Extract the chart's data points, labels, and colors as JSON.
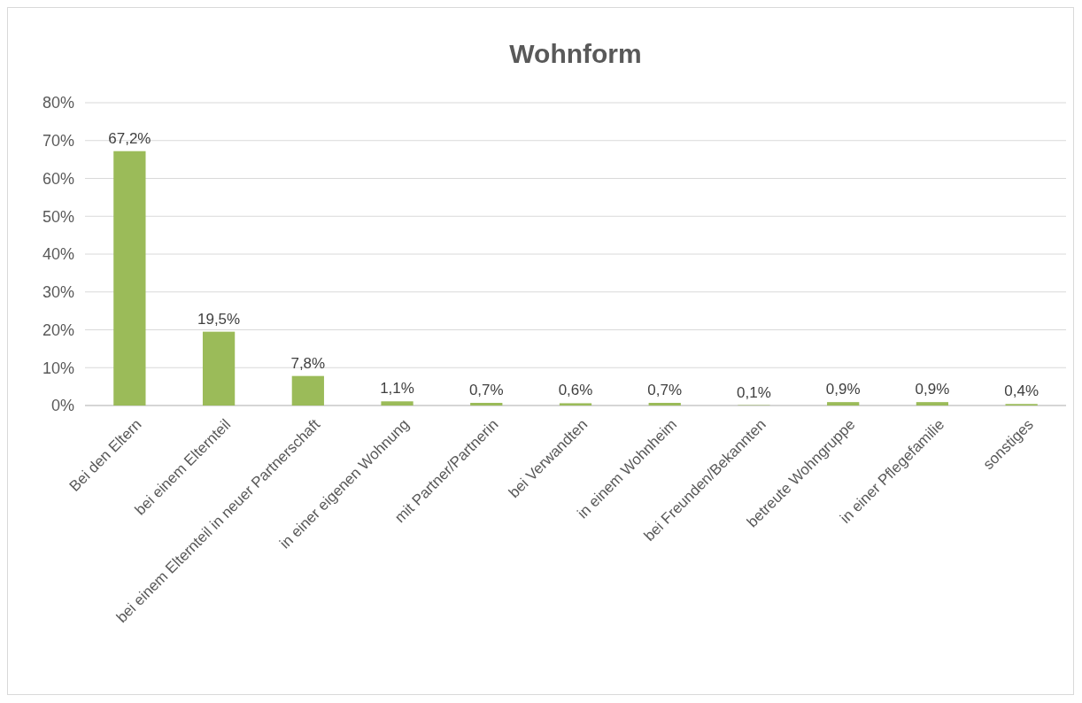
{
  "chart_data": {
    "type": "bar",
    "title": "Wohnform",
    "categories": [
      "Bei den Eltern",
      "bei einem Elternteil",
      "bei einem Elternteil in neuer Partnerschaft",
      "in einer eigenen Wohnung",
      "mit Partner/Partnerin",
      "bei Verwandten",
      "in einem Wohnheim",
      "bei Freunden/Bekannten",
      "betreute Wohngruppe",
      "in einer Pflegefamilie",
      "sonstiges"
    ],
    "values": [
      67.2,
      19.5,
      7.8,
      1.1,
      0.7,
      0.6,
      0.7,
      0.1,
      0.9,
      0.9,
      0.4
    ],
    "value_labels": [
      "67,2%",
      "19,5%",
      "7,8%",
      "1,1%",
      "0,7%",
      "0,6%",
      "0,7%",
      "0,1%",
      "0,9%",
      "0,9%",
      "0,4%"
    ],
    "color": "#9bbb59",
    "ylim": [
      0,
      80
    ],
    "yticks": [
      {
        "value": 0,
        "label": "0%"
      },
      {
        "value": 10,
        "label": "10%"
      },
      {
        "value": 20,
        "label": "20%"
      },
      {
        "value": 30,
        "label": "30%"
      },
      {
        "value": 40,
        "label": "40%"
      },
      {
        "value": 50,
        "label": "50%"
      },
      {
        "value": 60,
        "label": "60%"
      },
      {
        "value": 70,
        "label": "70%"
      },
      {
        "value": 80,
        "label": "80%"
      }
    ],
    "grid": "y"
  }
}
